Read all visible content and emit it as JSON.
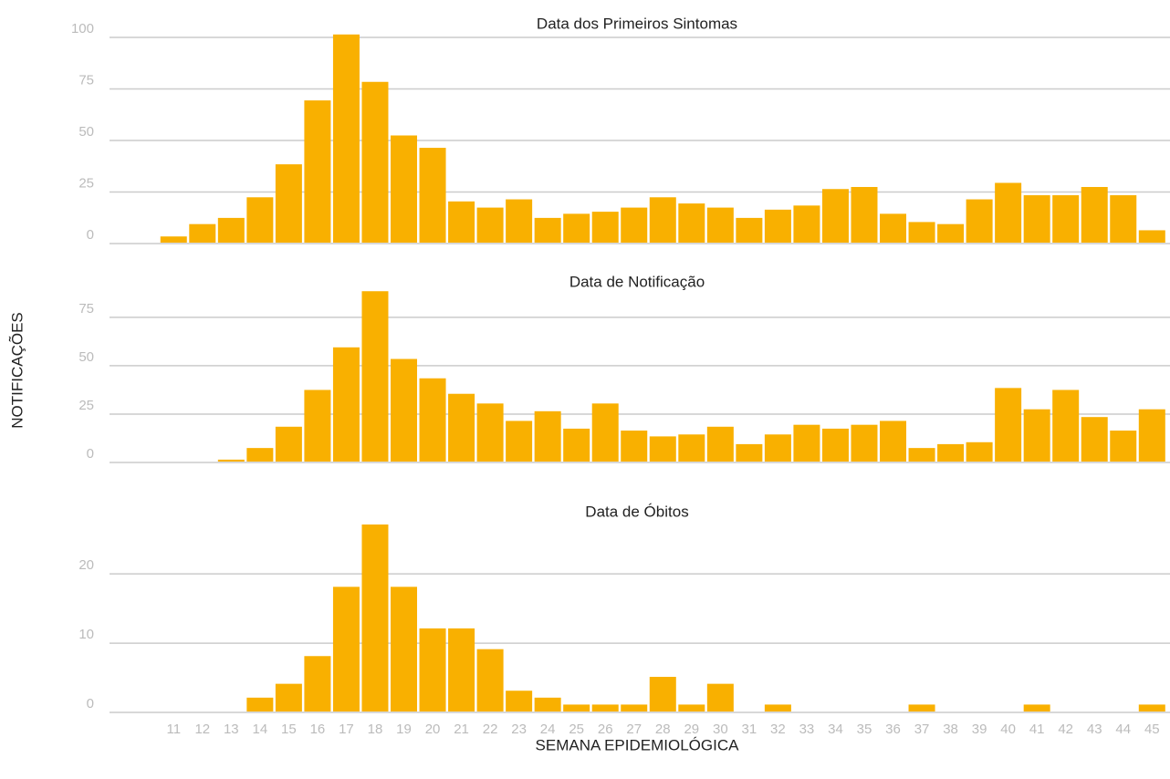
{
  "chart_data": [
    {
      "type": "bar",
      "title": "Data dos Primeiros Sintomas",
      "color": "#f9b000",
      "grid": true,
      "values": [
        3,
        9,
        12,
        22,
        38,
        69,
        101,
        78,
        52,
        46,
        20,
        17,
        21,
        12,
        14,
        15,
        17,
        22,
        19,
        17,
        12,
        16,
        18,
        26,
        27,
        14,
        10,
        9,
        21,
        29,
        23,
        23,
        27,
        23,
        6
      ],
      "ylim": [
        0,
        104
      ],
      "yticks": [
        0,
        25,
        50,
        75,
        100
      ]
    },
    {
      "type": "bar",
      "title": "Data de Notificação",
      "color": "#f9b000",
      "grid": true,
      "ylabel": "NOTIFICAÇÕES",
      "values": [
        0,
        0,
        1,
        7,
        18,
        37,
        59,
        88,
        53,
        43,
        35,
        30,
        21,
        26,
        17,
        30,
        16,
        13,
        14,
        18,
        9,
        14,
        19,
        17,
        19,
        21,
        7,
        9,
        10,
        38,
        27,
        37,
        23,
        16,
        27
      ],
      "ylim": [
        0,
        90
      ],
      "yticks": [
        0,
        25,
        50,
        75
      ]
    },
    {
      "type": "bar",
      "title": "Data de Óbitos",
      "color": "#f9b000",
      "grid": true,
      "xlabel": "SEMANA EPIDEMIOLÓGICA",
      "categories": [
        "11",
        "12",
        "13",
        "14",
        "15",
        "16",
        "17",
        "18",
        "19",
        "20",
        "21",
        "22",
        "23",
        "24",
        "25",
        "26",
        "27",
        "28",
        "29",
        "30",
        "31",
        "32",
        "33",
        "34",
        "35",
        "36",
        "37",
        "38",
        "39",
        "40",
        "41",
        "42",
        "43",
        "44",
        "45"
      ],
      "values": [
        0,
        0,
        0,
        2,
        4,
        8,
        18,
        27,
        18,
        12,
        12,
        9,
        3,
        2,
        1,
        1,
        1,
        5,
        1,
        4,
        0,
        1,
        0,
        0,
        0,
        0,
        1,
        0,
        0,
        0,
        1,
        0,
        0,
        0,
        1
      ],
      "ylim": [
        0,
        27
      ],
      "yticks": [
        0,
        10,
        20
      ]
    }
  ]
}
